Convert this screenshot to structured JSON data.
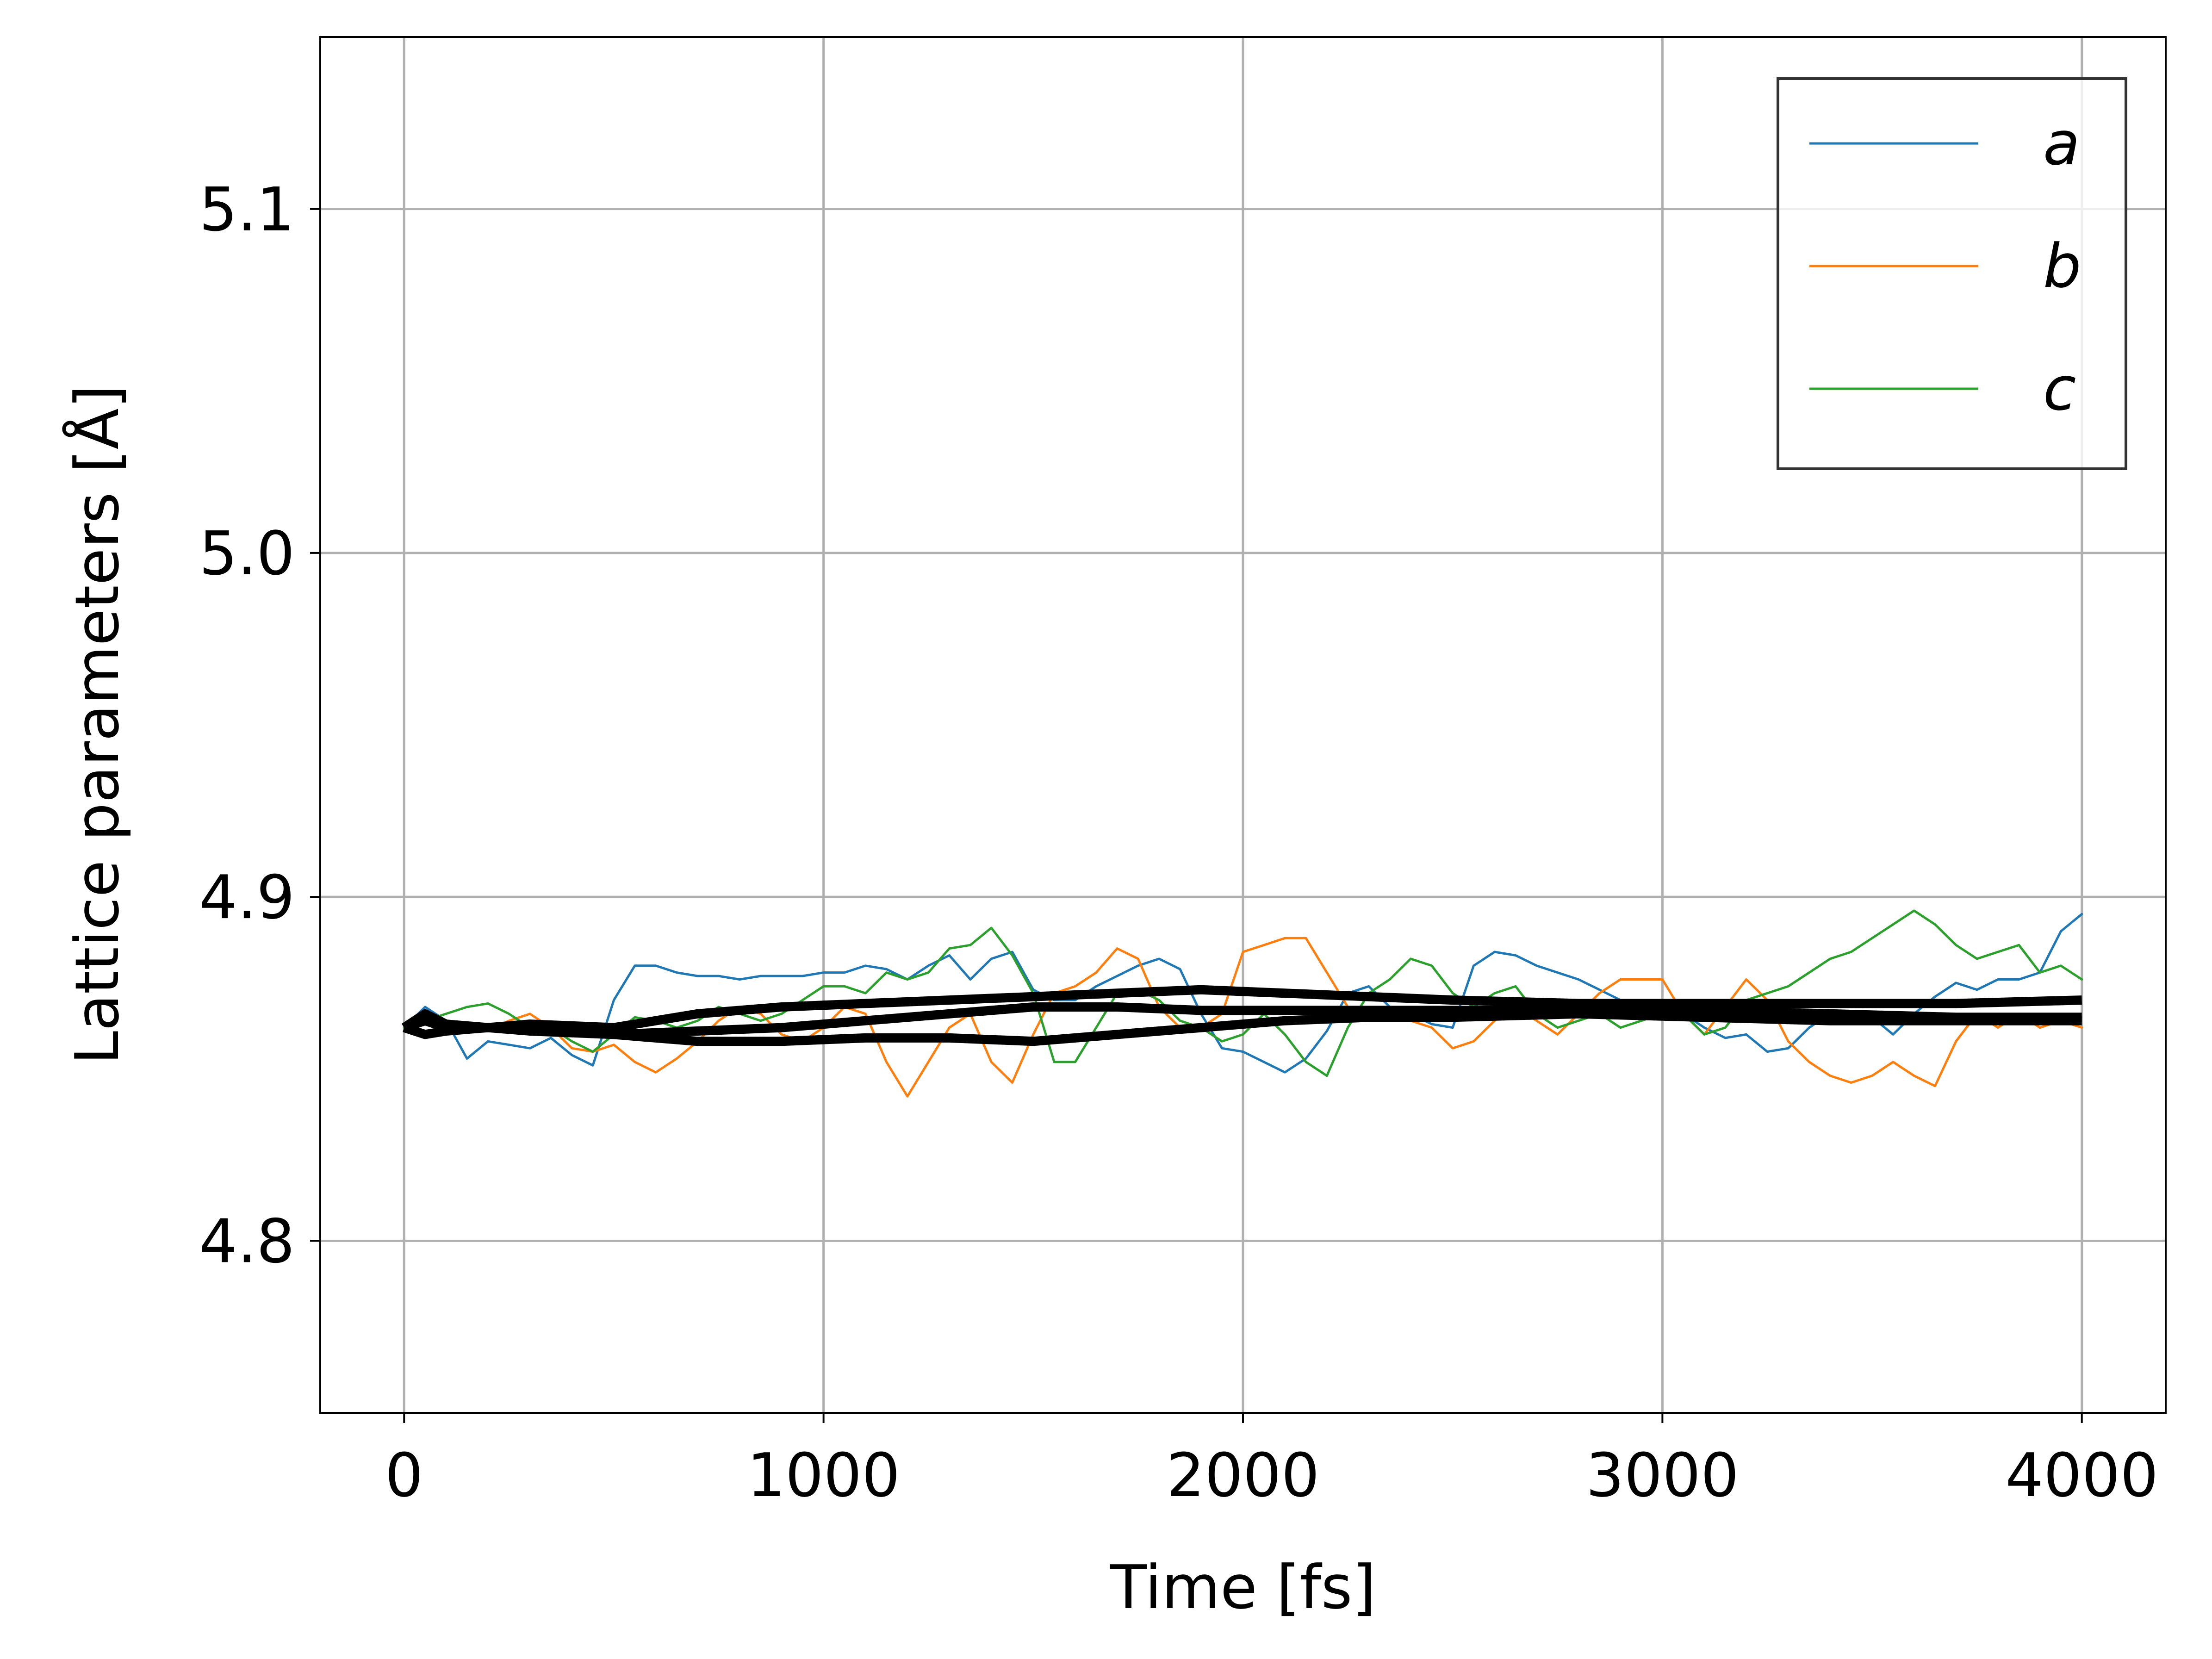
{
  "chart_data": {
    "type": "line",
    "title": "",
    "xlabel": "Time [fs]",
    "ylabel": "Lattice parameters [Å]",
    "xlim": [
      -200,
      4200
    ],
    "ylim": [
      4.75,
      5.15
    ],
    "xticks": [
      0,
      1000,
      2000,
      3000,
      4000
    ],
    "xtick_labels": [
      "0",
      "1000",
      "2000",
      "3000",
      "4000"
    ],
    "yticks": [
      4.8,
      4.9,
      5.0,
      5.1
    ],
    "ytick_labels": [
      "4.8",
      "4.9",
      "5.0",
      "5.1"
    ],
    "grid": true,
    "legend_position": "top-right",
    "x": [
      0,
      50,
      100,
      150,
      200,
      250,
      300,
      350,
      400,
      450,
      500,
      550,
      600,
      650,
      700,
      750,
      800,
      850,
      900,
      950,
      1000,
      1050,
      1100,
      1150,
      1200,
      1250,
      1300,
      1350,
      1400,
      1450,
      1500,
      1550,
      1600,
      1650,
      1700,
      1750,
      1800,
      1850,
      1900,
      1950,
      2000,
      2050,
      2100,
      2150,
      2200,
      2250,
      2300,
      2350,
      2400,
      2450,
      2500,
      2550,
      2600,
      2650,
      2700,
      2750,
      2800,
      2850,
      2900,
      2950,
      3000,
      3050,
      3100,
      3150,
      3200,
      3250,
      3300,
      3350,
      3400,
      3450,
      3500,
      3550,
      3600,
      3650,
      3700,
      3750,
      3800,
      3850,
      3900,
      3950,
      4000
    ],
    "series": [
      {
        "name": "a",
        "color": "#1f77b4",
        "values": [
          4.862,
          4.868,
          4.864,
          4.853,
          4.858,
          4.857,
          4.856,
          4.859,
          4.854,
          4.851,
          4.87,
          4.88,
          4.88,
          4.878,
          4.877,
          4.877,
          4.876,
          4.877,
          4.877,
          4.877,
          4.878,
          4.878,
          4.88,
          4.879,
          4.876,
          4.88,
          4.883,
          4.876,
          4.882,
          4.884,
          4.873,
          4.87,
          4.87,
          4.874,
          4.877,
          4.88,
          4.882,
          4.879,
          4.866,
          4.856,
          4.855,
          4.852,
          4.849,
          4.853,
          4.861,
          4.872,
          4.874,
          4.868,
          4.866,
          4.863,
          4.862,
          4.88,
          4.884,
          4.883,
          4.88,
          4.878,
          4.876,
          4.873,
          4.87,
          4.869,
          4.868,
          4.866,
          4.862,
          4.859,
          4.86,
          4.855,
          4.856,
          4.862,
          4.866,
          4.866,
          4.865,
          4.86,
          4.866,
          4.871,
          4.875,
          4.873,
          4.876,
          4.876,
          4.878,
          4.89,
          4.895
        ]
      },
      {
        "name": "b",
        "color": "#ff7f0e",
        "values": [
          4.862,
          4.866,
          4.862,
          4.863,
          4.861,
          4.864,
          4.866,
          4.862,
          4.856,
          4.855,
          4.857,
          4.852,
          4.849,
          4.853,
          4.858,
          4.864,
          4.868,
          4.866,
          4.86,
          4.858,
          4.862,
          4.868,
          4.866,
          4.852,
          4.842,
          4.852,
          4.862,
          4.866,
          4.852,
          4.846,
          4.86,
          4.872,
          4.874,
          4.878,
          4.885,
          4.882,
          4.868,
          4.862,
          4.862,
          4.866,
          4.884,
          4.886,
          4.888,
          4.888,
          4.878,
          4.868,
          4.866,
          4.866,
          4.864,
          4.862,
          4.856,
          4.858,
          4.864,
          4.868,
          4.864,
          4.86,
          4.866,
          4.872,
          4.876,
          4.876,
          4.876,
          4.866,
          4.86,
          4.868,
          4.876,
          4.87,
          4.858,
          4.852,
          4.848,
          4.846,
          4.848,
          4.852,
          4.848,
          4.845,
          4.858,
          4.866,
          4.862,
          4.866,
          4.862,
          4.864,
          4.862
        ]
      },
      {
        "name": "c",
        "color": "#2ca02c",
        "values": [
          4.862,
          4.864,
          4.866,
          4.868,
          4.869,
          4.866,
          4.862,
          4.862,
          4.858,
          4.855,
          4.86,
          4.865,
          4.864,
          4.862,
          4.864,
          4.868,
          4.866,
          4.864,
          4.866,
          4.87,
          4.874,
          4.874,
          4.872,
          4.878,
          4.876,
          4.878,
          4.885,
          4.886,
          4.891,
          4.883,
          4.872,
          4.852,
          4.852,
          4.862,
          4.872,
          4.873,
          4.87,
          4.864,
          4.862,
          4.858,
          4.86,
          4.866,
          4.86,
          4.852,
          4.848,
          4.862,
          4.872,
          4.876,
          4.882,
          4.88,
          4.872,
          4.868,
          4.872,
          4.874,
          4.866,
          4.862,
          4.864,
          4.866,
          4.862,
          4.864,
          4.866,
          4.866,
          4.86,
          4.862,
          4.87,
          4.872,
          4.874,
          4.878,
          4.882,
          4.884,
          4.888,
          4.892,
          4.896,
          4.892,
          4.886,
          4.882,
          4.884,
          4.886,
          4.878,
          4.88,
          4.876
        ]
      }
    ],
    "averages": [
      {
        "x": [
          0,
          50,
          100,
          200,
          300,
          500,
          700,
          900,
          1100,
          1300,
          1500,
          1700,
          1900,
          2100,
          2300,
          2500,
          2800,
          3100,
          3400,
          3700,
          4000
        ],
        "values": [
          4.862,
          4.866,
          4.863,
          4.862,
          4.863,
          4.862,
          4.866,
          4.868,
          4.869,
          4.87,
          4.871,
          4.872,
          4.873,
          4.872,
          4.871,
          4.87,
          4.869,
          4.869,
          4.869,
          4.869,
          4.87
        ]
      },
      {
        "x": [
          0,
          50,
          100,
          200,
          300,
          500,
          700,
          900,
          1100,
          1300,
          1500,
          1700,
          1900,
          2100,
          2300,
          2500,
          2800,
          3100,
          3400,
          3700,
          4000
        ],
        "values": [
          4.862,
          4.86,
          4.861,
          4.862,
          4.862,
          4.86,
          4.858,
          4.858,
          4.859,
          4.859,
          4.858,
          4.86,
          4.862,
          4.864,
          4.865,
          4.865,
          4.866,
          4.865,
          4.864,
          4.864,
          4.864
        ]
      },
      {
        "x": [
          0,
          50,
          100,
          200,
          300,
          500,
          700,
          900,
          1100,
          1300,
          1500,
          1700,
          1900,
          2100,
          2300,
          2500,
          2800,
          3100,
          3400,
          3700,
          4000
        ],
        "values": [
          4.862,
          4.864,
          4.862,
          4.862,
          4.861,
          4.86,
          4.861,
          4.862,
          4.864,
          4.866,
          4.868,
          4.868,
          4.867,
          4.867,
          4.867,
          4.867,
          4.867,
          4.867,
          4.866,
          4.865,
          4.865
        ]
      }
    ]
  }
}
